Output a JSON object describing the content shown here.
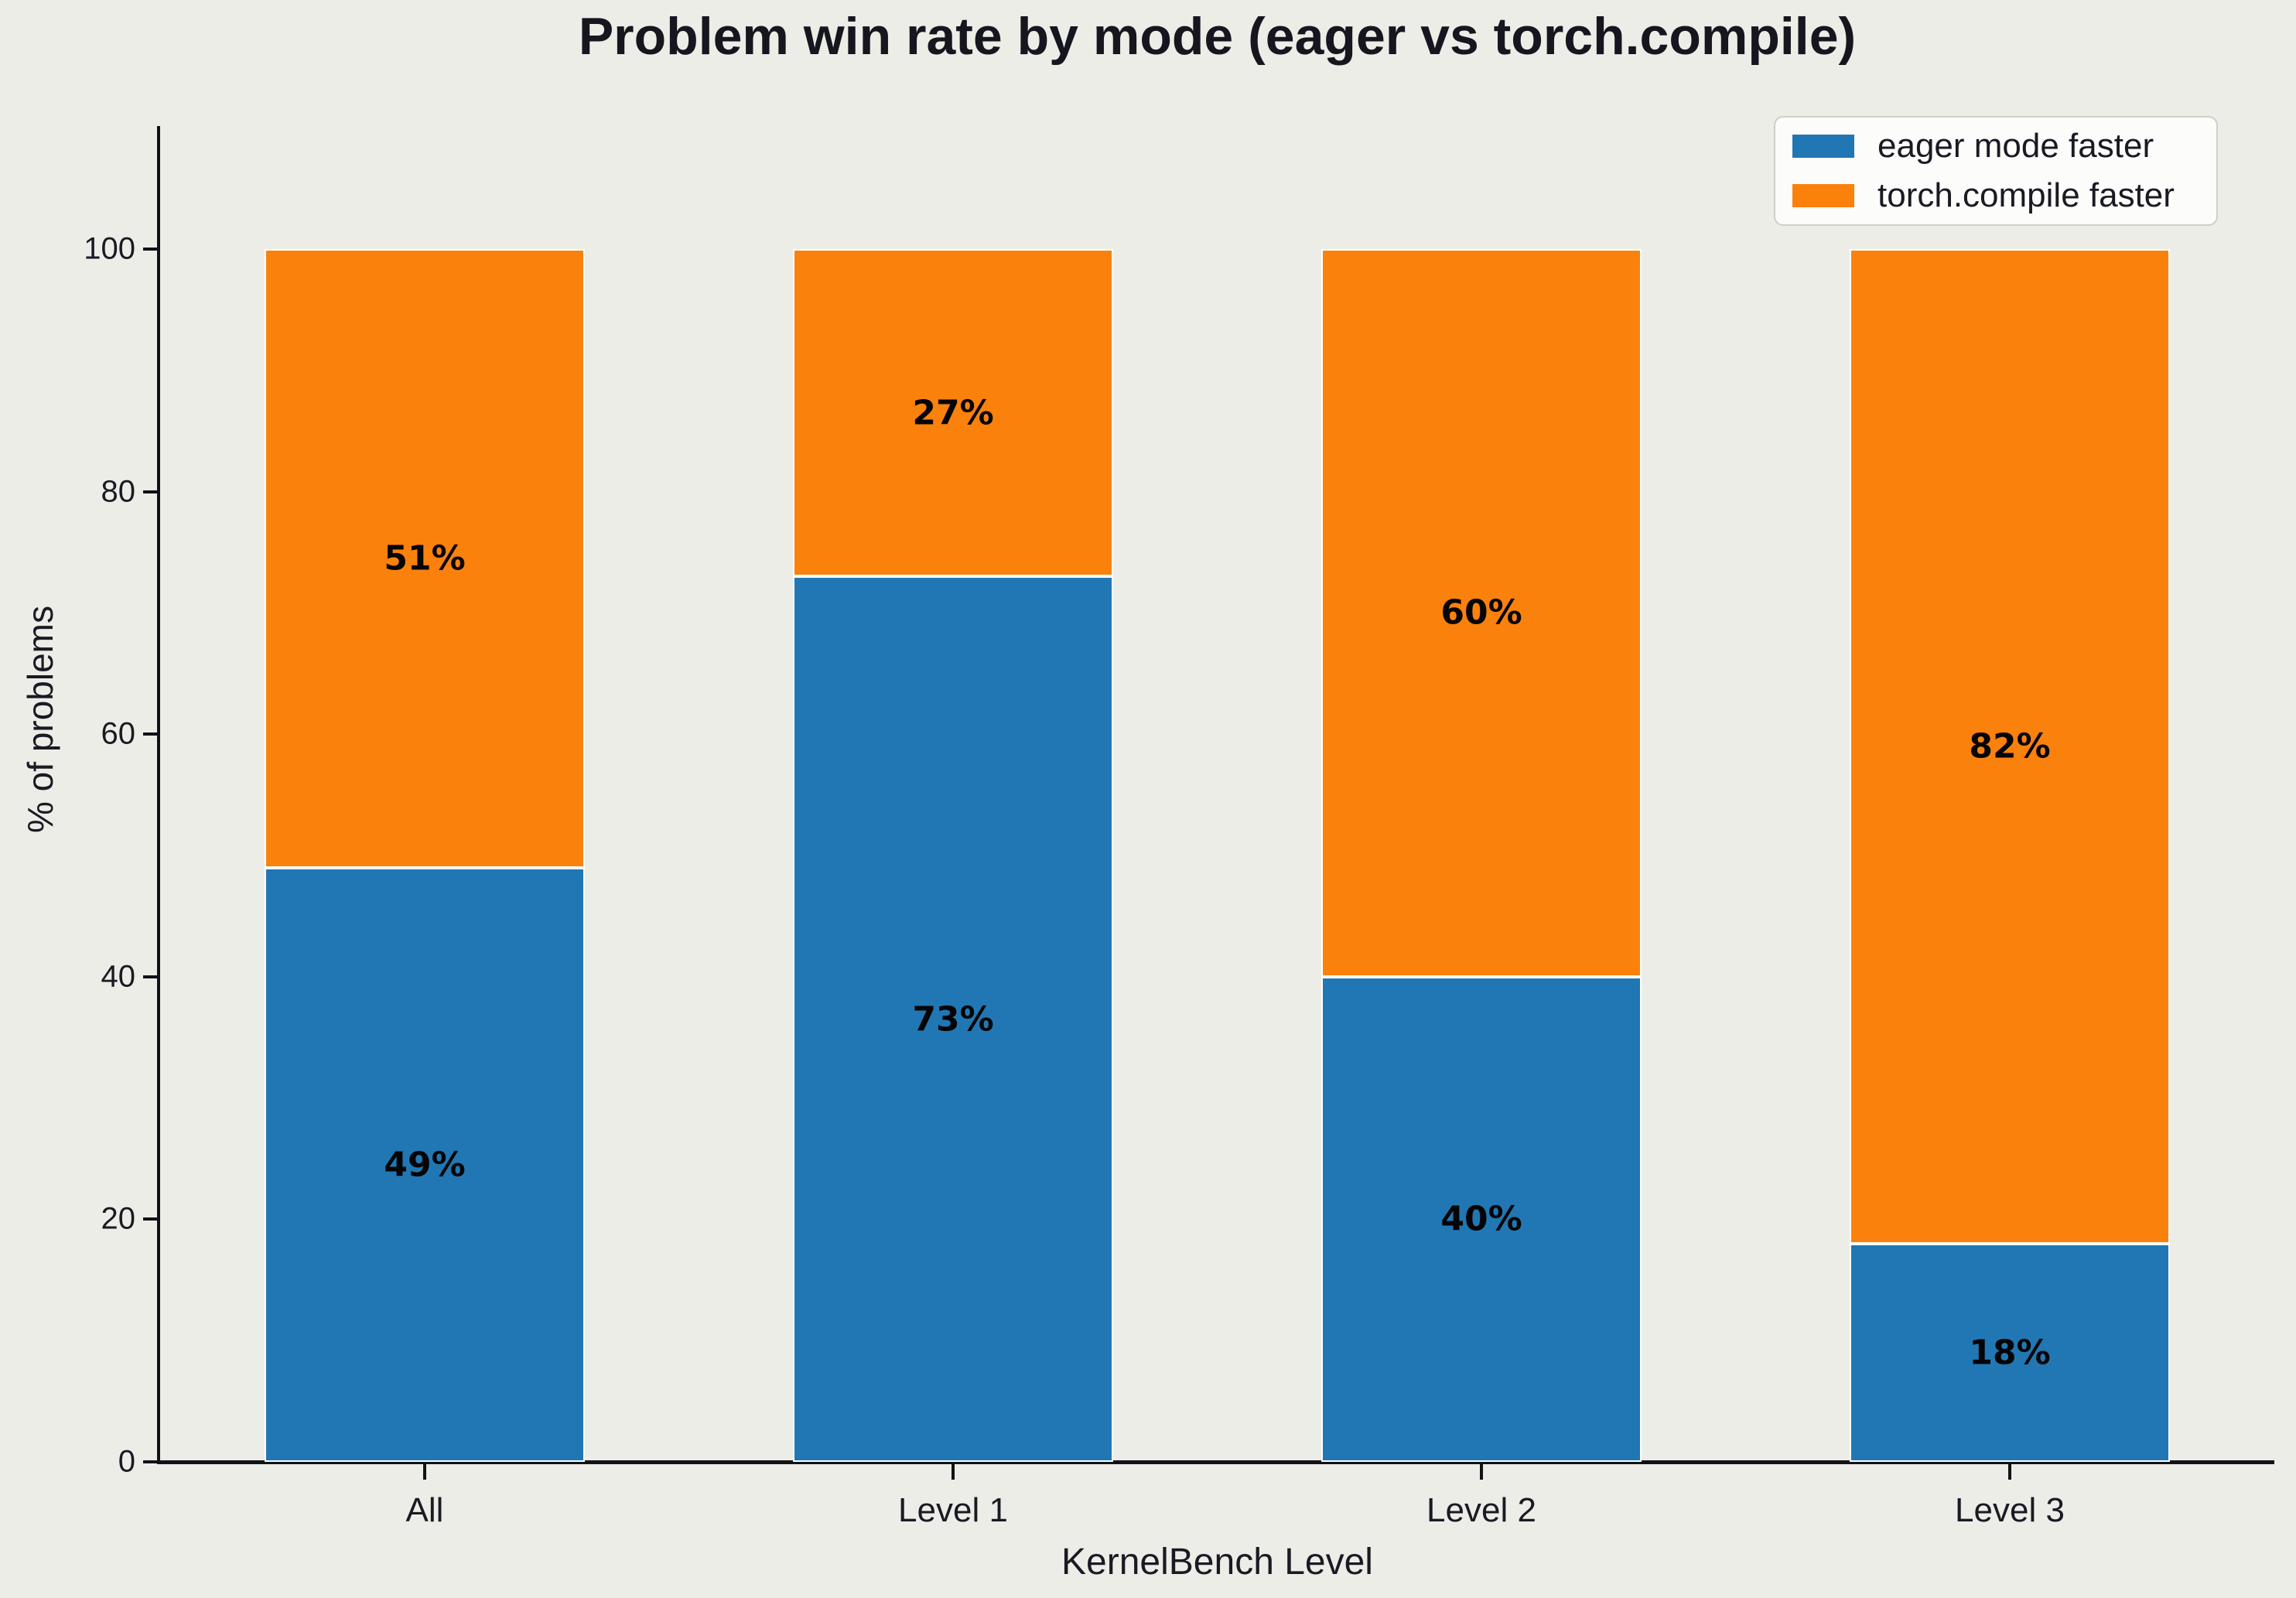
{
  "title": "Problem win rate by mode (eager vs torch.compile)",
  "colors": {
    "background": "#EDEDE8",
    "axis_line": "#111118",
    "text": "#1A1A24",
    "title_text": "#16161F",
    "bar_value_text": "#050505",
    "bar_edge": "#FFFFFF",
    "legend_background": "#FCFCFA",
    "legend_border": "#CFCFC9",
    "eager_blue": "#2177B4",
    "compile_orange": "#FB810D"
  },
  "chart_data": {
    "type": "bar",
    "stacked": true,
    "title": "Problem win rate by mode (eager vs torch.compile)",
    "xlabel": "KernelBench Level",
    "ylabel": "% of problems",
    "categories": [
      "All",
      "Level 1",
      "Level 2",
      "Level 3"
    ],
    "series": [
      {
        "name": "eager mode faster",
        "color": "#2177B4",
        "values": [
          49,
          73,
          40,
          18
        ],
        "labels": [
          "49%",
          "73%",
          "40%",
          "18%"
        ]
      },
      {
        "name": "torch.compile faster",
        "color": "#FB810D",
        "values": [
          51,
          27,
          60,
          82
        ],
        "labels": [
          "51%",
          "27%",
          "60%",
          "82%"
        ]
      }
    ],
    "ylim": [
      0,
      110
    ],
    "yticks": [
      0,
      20,
      40,
      60,
      80,
      100
    ],
    "grid": false,
    "legend_position": "upper right"
  }
}
